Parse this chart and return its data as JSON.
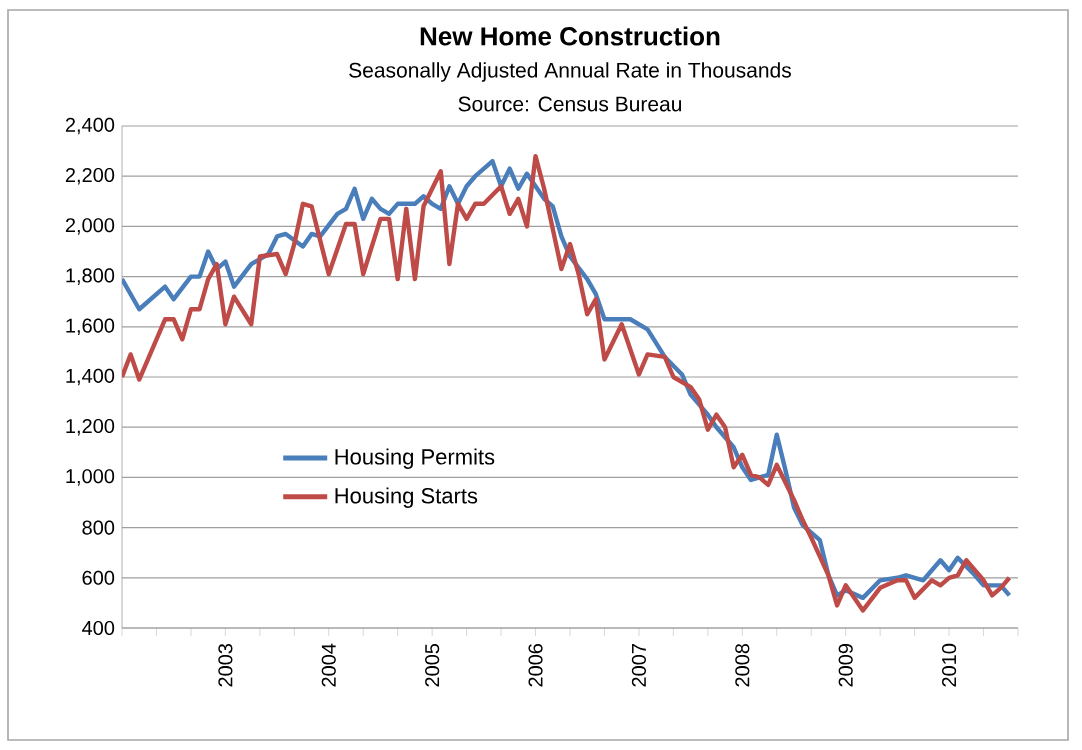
{
  "chart_data": {
    "type": "line",
    "title": "New Home Construction",
    "subtitle": "Seasonally Adjusted Annual Rate in Thousands",
    "annotations": [
      "Source: Census Bureau"
    ],
    "xlim": [
      "2002-01",
      "2010-09"
    ],
    "xticks": [
      {
        "value": "2002-01",
        "label": null
      },
      {
        "value": "2002-05",
        "label": null
      },
      {
        "value": "2002-09",
        "label": null
      },
      {
        "value": "2003-01",
        "label": "2003"
      },
      {
        "value": "2003-05",
        "label": null
      },
      {
        "value": "2003-09",
        "label": null
      },
      {
        "value": "2004-01",
        "label": "2004"
      },
      {
        "value": "2004-05",
        "label": null
      },
      {
        "value": "2004-09",
        "label": null
      },
      {
        "value": "2005-01",
        "label": "2005"
      },
      {
        "value": "2005-05",
        "label": null
      },
      {
        "value": "2005-09",
        "label": null
      },
      {
        "value": "2006-01",
        "label": "2006"
      },
      {
        "value": "2006-05",
        "label": null
      },
      {
        "value": "2006-09",
        "label": null
      },
      {
        "value": "2007-01",
        "label": "2007"
      },
      {
        "value": "2007-05",
        "label": null
      },
      {
        "value": "2007-09",
        "label": null
      },
      {
        "value": "2008-01",
        "label": "2008"
      },
      {
        "value": "2008-05",
        "label": null
      },
      {
        "value": "2008-09",
        "label": null
      },
      {
        "value": "2009-01",
        "label": "2009"
      },
      {
        "value": "2009-05",
        "label": null
      },
      {
        "value": "2009-09",
        "label": null
      },
      {
        "value": "2010-01",
        "label": "2010"
      },
      {
        "value": "2010-05",
        "label": null
      },
      {
        "value": "2010-09",
        "label": null
      }
    ],
    "ylim": [
      400,
      2400
    ],
    "yticks": [
      400,
      600,
      800,
      {
        "value": 1000,
        "label": "1,000"
      },
      {
        "value": 1200,
        "label": "1,200"
      },
      {
        "value": 1400,
        "label": "1,400"
      },
      {
        "value": 1600,
        "label": "1,600"
      },
      {
        "value": 1800,
        "label": "1,800"
      },
      {
        "value": 2000,
        "label": "2,000"
      },
      {
        "value": 2200,
        "label": "2,200"
      },
      {
        "value": 2400,
        "label": "2,400"
      }
    ],
    "grid": "y",
    "legend": "left",
    "series": [
      {
        "name": "Housing Permits",
        "color": "#4a7ebb",
        "x": [
          "2002-01",
          "2002-03",
          "2002-06",
          "2002-07",
          "2002-09",
          "2002-10",
          "2002-11",
          "2002-12",
          "2003-01",
          "2003-02",
          "2003-04",
          "2003-06",
          "2003-07",
          "2003-08",
          "2003-10",
          "2003-11",
          "2003-12",
          "2004-02",
          "2004-03",
          "2004-04",
          "2004-05",
          "2004-06",
          "2004-07",
          "2004-08",
          "2004-09",
          "2004-11",
          "2004-12",
          "2005-01",
          "2005-02",
          "2005-03",
          "2005-04",
          "2005-05",
          "2005-06",
          "2005-07",
          "2005-08",
          "2005-09",
          "2005-10",
          "2005-11",
          "2005-12",
          "2006-02",
          "2006-03",
          "2006-04",
          "2006-05",
          "2006-07",
          "2006-08",
          "2006-09",
          "2006-11",
          "2006-12",
          "2007-02",
          "2007-04",
          "2007-06",
          "2007-07",
          "2007-09",
          "2007-10",
          "2007-12",
          "2008-01",
          "2008-02",
          "2008-04",
          "2008-05",
          "2008-06",
          "2008-07",
          "2008-08",
          "2008-10",
          "2008-11",
          "2008-12",
          "2009-01",
          "2009-03",
          "2009-05",
          "2009-07",
          "2009-08",
          "2009-10",
          "2009-12",
          "2010-01",
          "2010-02",
          "2010-04",
          "2010-05",
          "2010-07",
          "2010-08"
        ],
        "values": [
          1790,
          1670,
          1760,
          1710,
          1800,
          1800,
          1900,
          1830,
          1860,
          1760,
          1850,
          1890,
          1960,
          1970,
          1920,
          1970,
          1960,
          2050,
          2070,
          2150,
          2030,
          2110,
          2070,
          2050,
          2090,
          2090,
          2120,
          2090,
          2070,
          2160,
          2090,
          2160,
          2200,
          2230,
          2260,
          2160,
          2230,
          2150,
          2210,
          2110,
          2080,
          1960,
          1880,
          1790,
          1730,
          1630,
          1630,
          1630,
          1590,
          1480,
          1410,
          1330,
          1250,
          1200,
          1120,
          1040,
          990,
          1010,
          1170,
          1030,
          880,
          810,
          750,
          610,
          530,
          550,
          520,
          590,
          600,
          610,
          590,
          670,
          630,
          680,
          610,
          570,
          570,
          530
        ]
      },
      {
        "name": "Housing Starts",
        "color": "#be4b48",
        "x": [
          "2002-01",
          "2002-02",
          "2002-03",
          "2002-06",
          "2002-07",
          "2002-08",
          "2002-09",
          "2002-10",
          "2002-11",
          "2002-12",
          "2003-01",
          "2003-02",
          "2003-04",
          "2003-05",
          "2003-07",
          "2003-08",
          "2003-09",
          "2003-10",
          "2003-11",
          "2004-01",
          "2004-03",
          "2004-04",
          "2004-05",
          "2004-07",
          "2004-08",
          "2004-09",
          "2004-10",
          "2004-11",
          "2004-12",
          "2005-02",
          "2005-03",
          "2005-04",
          "2005-05",
          "2005-06",
          "2005-07",
          "2005-09",
          "2005-10",
          "2005-11",
          "2005-12",
          "2006-01",
          "2006-02",
          "2006-04",
          "2006-05",
          "2006-06",
          "2006-07",
          "2006-08",
          "2006-09",
          "2006-11",
          "2007-01",
          "2007-02",
          "2007-04",
          "2007-05",
          "2007-07",
          "2007-08",
          "2007-09",
          "2007-10",
          "2007-11",
          "2007-12",
          "2008-01",
          "2008-02",
          "2008-03",
          "2008-04",
          "2008-05",
          "2008-07",
          "2008-08",
          "2008-09",
          "2008-11",
          "2008-12",
          "2009-01",
          "2009-03",
          "2009-05",
          "2009-07",
          "2009-08",
          "2009-09",
          "2009-11",
          "2009-12",
          "2010-01",
          "2010-02",
          "2010-03",
          "2010-05",
          "2010-06",
          "2010-07",
          "2010-08"
        ],
        "values": [
          1400,
          1490,
          1390,
          1630,
          1630,
          1550,
          1670,
          1670,
          1790,
          1850,
          1610,
          1720,
          1610,
          1880,
          1890,
          1810,
          1930,
          2090,
          2080,
          1810,
          2010,
          2010,
          1810,
          2030,
          2030,
          1790,
          2070,
          1790,
          2080,
          2220,
          1850,
          2090,
          2030,
          2090,
          2090,
          2160,
          2050,
          2110,
          2000,
          2280,
          2150,
          1830,
          1930,
          1810,
          1650,
          1710,
          1470,
          1610,
          1410,
          1490,
          1480,
          1400,
          1360,
          1310,
          1190,
          1250,
          1200,
          1040,
          1090,
          1010,
          1000,
          970,
          1050,
          910,
          830,
          760,
          610,
          490,
          570,
          470,
          560,
          590,
          590,
          520,
          590,
          570,
          600,
          610,
          670,
          590,
          530,
          560,
          600
        ]
      }
    ]
  }
}
